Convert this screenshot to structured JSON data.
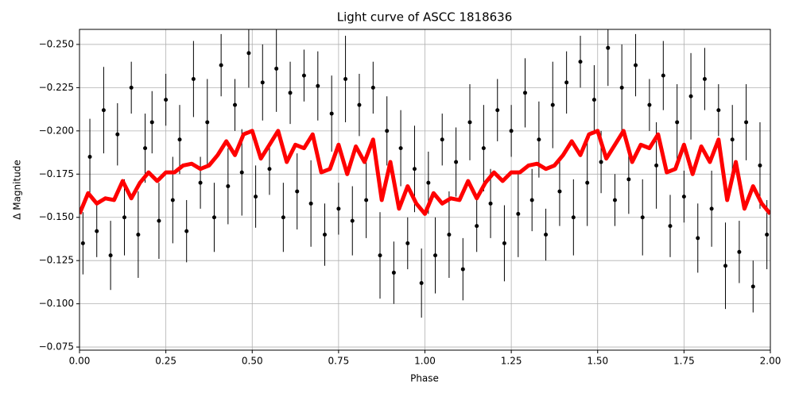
{
  "chart_data": {
    "type": "scatter",
    "title": "Light curve of ASCC 1818636",
    "x_label": "Phase",
    "y_label": "Δ Magnitude",
    "xlim": [
      0,
      2
    ],
    "ylim": [
      -0.0732,
      -0.2587
    ],
    "grid": true,
    "xticks": [
      {
        "value": 0,
        "label": "0.00"
      },
      {
        "value": 0.25,
        "label": "0.25"
      },
      {
        "value": 0.5,
        "label": "0.50"
      },
      {
        "value": 0.75,
        "label": "0.75"
      },
      {
        "value": 1,
        "label": "1.00"
      },
      {
        "value": 1.25,
        "label": "1.25"
      },
      {
        "value": 1.5,
        "label": "1.50"
      },
      {
        "value": 1.75,
        "label": "1.75"
      },
      {
        "value": 2,
        "label": "2.00"
      }
    ],
    "yticks": [
      {
        "value": -0.075,
        "label": "−0.075"
      },
      {
        "value": -0.1,
        "label": "−0.100"
      },
      {
        "value": -0.125,
        "label": "−0.125"
      },
      {
        "value": -0.15,
        "label": "−0.150"
      },
      {
        "value": -0.175,
        "label": "−0.175"
      },
      {
        "value": -0.2,
        "label": "−0.200"
      },
      {
        "value": -0.225,
        "label": "−0.225"
      },
      {
        "value": -0.25,
        "label": "−0.250"
      }
    ],
    "series": [
      {
        "type": "errorbar",
        "color": "#000000",
        "x": [
          0.01,
          0.03,
          0.05,
          0.07,
          0.09,
          0.11,
          0.13,
          0.15,
          0.17,
          0.19,
          0.21,
          0.23,
          0.25,
          0.27,
          0.29,
          0.31,
          0.33,
          0.35,
          0.37,
          0.39,
          0.41,
          0.43,
          0.45,
          0.47,
          0.49,
          0.51,
          0.53,
          0.55,
          0.57,
          0.59,
          0.61,
          0.63,
          0.65,
          0.67,
          0.69,
          0.71,
          0.73,
          0.75,
          0.77,
          0.79,
          0.81,
          0.83,
          0.85,
          0.87,
          0.89,
          0.91,
          0.93,
          0.95,
          0.97,
          0.99,
          1.01,
          1.03,
          1.05,
          1.07,
          1.09,
          1.11,
          1.13,
          1.15,
          1.17,
          1.19,
          1.21,
          1.23,
          1.25,
          1.27,
          1.29,
          1.31,
          1.33,
          1.35,
          1.37,
          1.39,
          1.41,
          1.43,
          1.45,
          1.47,
          1.49,
          1.51,
          1.53,
          1.55,
          1.57,
          1.59,
          1.61,
          1.63,
          1.65,
          1.67,
          1.69,
          1.71,
          1.73,
          1.75,
          1.77,
          1.79,
          1.81,
          1.83,
          1.85,
          1.87,
          1.89,
          1.91,
          1.93,
          1.95,
          1.97,
          1.99
        ],
        "values": [
          -0.135,
          -0.185,
          -0.142,
          -0.212,
          -0.128,
          -0.198,
          -0.15,
          -0.225,
          -0.14,
          -0.19,
          -0.205,
          -0.148,
          -0.218,
          -0.16,
          -0.195,
          -0.142,
          -0.23,
          -0.17,
          -0.205,
          -0.15,
          -0.238,
          -0.168,
          -0.215,
          -0.176,
          -0.245,
          -0.162,
          -0.228,
          -0.178,
          -0.236,
          -0.15,
          -0.222,
          -0.165,
          -0.232,
          -0.158,
          -0.226,
          -0.14,
          -0.21,
          -0.155,
          -0.23,
          -0.148,
          -0.215,
          -0.16,
          -0.225,
          -0.128,
          -0.2,
          -0.118,
          -0.19,
          -0.135,
          -0.178,
          -0.112,
          -0.17,
          -0.128,
          -0.195,
          -0.14,
          -0.182,
          -0.12,
          -0.205,
          -0.145,
          -0.19,
          -0.158,
          -0.212,
          -0.135,
          -0.2,
          -0.152,
          -0.222,
          -0.16,
          -0.195,
          -0.14,
          -0.215,
          -0.165,
          -0.228,
          -0.15,
          -0.24,
          -0.17,
          -0.218,
          -0.182,
          -0.248,
          -0.16,
          -0.225,
          -0.172,
          -0.238,
          -0.15,
          -0.215,
          -0.18,
          -0.232,
          -0.145,
          -0.205,
          -0.162,
          -0.22,
          -0.138,
          -0.23,
          -0.155,
          -0.212,
          -0.122,
          -0.195,
          -0.13,
          -0.205,
          -0.11,
          -0.18,
          -0.14
        ],
        "errors": [
          0.018,
          0.022,
          0.015,
          0.025,
          0.02,
          0.018,
          0.022,
          0.015,
          0.025,
          0.02,
          0.018,
          0.022,
          0.015,
          0.025,
          0.02,
          0.018,
          0.022,
          0.015,
          0.025,
          0.02,
          0.018,
          0.022,
          0.015,
          0.025,
          0.02,
          0.018,
          0.022,
          0.015,
          0.025,
          0.02,
          0.018,
          0.022,
          0.015,
          0.025,
          0.02,
          0.018,
          0.022,
          0.015,
          0.025,
          0.02,
          0.018,
          0.022,
          0.015,
          0.025,
          0.02,
          0.018,
          0.022,
          0.015,
          0.025,
          0.02,
          0.018,
          0.022,
          0.015,
          0.025,
          0.02,
          0.018,
          0.022,
          0.015,
          0.025,
          0.02,
          0.018,
          0.022,
          0.015,
          0.025,
          0.02,
          0.018,
          0.022,
          0.015,
          0.025,
          0.02,
          0.018,
          0.022,
          0.015,
          0.025,
          0.02,
          0.018,
          0.022,
          0.015,
          0.025,
          0.02,
          0.018,
          0.022,
          0.015,
          0.025,
          0.02,
          0.018,
          0.022,
          0.015,
          0.025,
          0.02,
          0.018,
          0.022,
          0.015,
          0.025,
          0.02,
          0.018,
          0.022,
          0.015,
          0.025,
          0.02
        ]
      },
      {
        "type": "line",
        "color": "#ff0000",
        "x": [
          0,
          0.025,
          0.05,
          0.075,
          0.1,
          0.125,
          0.15,
          0.175,
          0.2,
          0.225,
          0.25,
          0.275,
          0.3,
          0.325,
          0.35,
          0.375,
          0.4,
          0.425,
          0.45,
          0.475,
          0.5,
          0.525,
          0.55,
          0.575,
          0.6,
          0.625,
          0.65,
          0.675,
          0.7,
          0.725,
          0.75,
          0.775,
          0.8,
          0.825,
          0.85,
          0.875,
          0.9,
          0.925,
          0.95,
          0.975,
          1,
          1.025,
          1.05,
          1.075,
          1.1,
          1.125,
          1.15,
          1.175,
          1.2,
          1.225,
          1.25,
          1.275,
          1.3,
          1.325,
          1.35,
          1.375,
          1.4,
          1.425,
          1.45,
          1.475,
          1.5,
          1.525,
          1.55,
          1.575,
          1.6,
          1.625,
          1.65,
          1.675,
          1.7,
          1.725,
          1.75,
          1.775,
          1.8,
          1.825,
          1.85,
          1.875,
          1.9,
          1.925,
          1.95,
          1.975,
          2
        ],
        "values": [
          -0.152,
          -0.164,
          -0.158,
          -0.161,
          -0.16,
          -0.171,
          -0.161,
          -0.17,
          -0.176,
          -0.171,
          -0.176,
          -0.176,
          -0.18,
          -0.181,
          -0.178,
          -0.18,
          -0.186,
          -0.194,
          -0.186,
          -0.198,
          -0.2,
          -0.184,
          -0.192,
          -0.2,
          -0.182,
          -0.192,
          -0.19,
          -0.198,
          -0.176,
          -0.178,
          -0.192,
          -0.175,
          -0.191,
          -0.182,
          -0.195,
          -0.16,
          -0.182,
          -0.155,
          -0.168,
          -0.158,
          -0.152,
          -0.164,
          -0.158,
          -0.161,
          -0.16,
          -0.171,
          -0.161,
          -0.17,
          -0.176,
          -0.171,
          -0.176,
          -0.176,
          -0.18,
          -0.181,
          -0.178,
          -0.18,
          -0.186,
          -0.194,
          -0.186,
          -0.198,
          -0.2,
          -0.184,
          -0.192,
          -0.2,
          -0.182,
          -0.192,
          -0.19,
          -0.198,
          -0.176,
          -0.178,
          -0.192,
          -0.175,
          -0.191,
          -0.182,
          -0.195,
          -0.16,
          -0.182,
          -0.155,
          -0.168,
          -0.158,
          -0.152
        ]
      }
    ]
  }
}
